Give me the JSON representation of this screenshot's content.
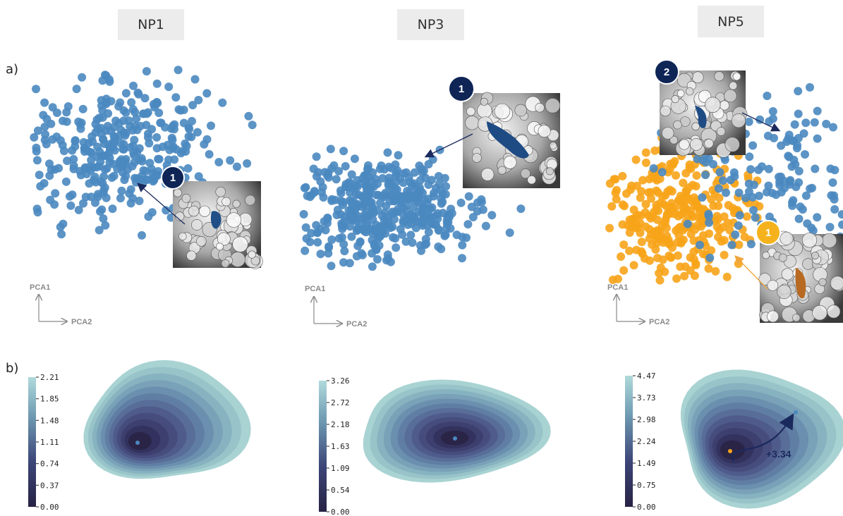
{
  "panel_a_label": "a)",
  "panel_b_label": "b)",
  "columns": [
    {
      "title": "NP1",
      "pca1": "PCA1",
      "pca2": "PCA2",
      "pockets": [
        {
          "number": "1",
          "color": "#0e2556",
          "text_color": "#ffffff"
        }
      ],
      "colorbar_ticks": [
        "2.21",
        "1.85",
        "1.48",
        "1.11",
        "0.74",
        "0.37",
        "0.00"
      ],
      "delta": ""
    },
    {
      "title": "NP3",
      "pca1": "PCA1",
      "pca2": "PCA2",
      "pockets": [
        {
          "number": "1",
          "color": "#0e2556",
          "text_color": "#ffffff"
        }
      ],
      "colorbar_ticks": [
        "3.26",
        "2.72",
        "2.18",
        "1.63",
        "1.09",
        "0.54",
        "0.00"
      ],
      "delta": ""
    },
    {
      "title": "NP5",
      "pca1": "PCA1",
      "pca2": "PCA2",
      "pockets": [
        {
          "number": "2",
          "color": "#0e2556",
          "text_color": "#ffffff"
        },
        {
          "number": "1",
          "color": "#f5b21c",
          "text_color": "#ffffff"
        }
      ],
      "colorbar_ticks": [
        "4.47",
        "3.73",
        "2.98",
        "2.24",
        "1.49",
        "0.75",
        "0.00"
      ],
      "delta": "+3.34"
    }
  ],
  "colors": {
    "point_blue": "#4a88c0",
    "point_orange": "#f7a41a",
    "density_low": "#a9d3d3",
    "density_high": "#2a2447",
    "arrow_navy": "#1b2a5e"
  },
  "chart_data": [
    {
      "type": "scatter",
      "title": "NP1",
      "xlabel": "PCA2",
      "ylabel": "PCA1",
      "series": [
        {
          "name": "",
          "n_points": 330,
          "center_pca2": 0.0,
          "center_pca1": 0.3,
          "color": "#4a88c0"
        }
      ]
    },
    {
      "type": "scatter",
      "title": "NP3",
      "xlabel": "PCA2",
      "ylabel": "PCA1",
      "series": [
        {
          "name": "",
          "n_points": 420,
          "center_pca2": 0.0,
          "center_pca1": 0.0,
          "color": "#4a88c0"
        }
      ]
    },
    {
      "type": "scatter",
      "title": "NP5",
      "xlabel": "PCA2",
      "ylabel": "PCA1",
      "series": [
        {
          "name": "",
          "n_points": 300,
          "center_pca2": -0.8,
          "center_pca1": -0.3,
          "color": "#f7a41a"
        },
        {
          "name": "",
          "n_points": 150,
          "center_pca2": 0.9,
          "center_pca1": 0.3,
          "color": "#4a88c0"
        }
      ]
    },
    {
      "type": "heatmap",
      "title": "NP1 density",
      "colorbar_ticks": [
        2.21,
        1.85,
        1.48,
        1.11,
        0.74,
        0.37,
        0.0
      ],
      "vmin": 0.0,
      "vmax": 2.21
    },
    {
      "type": "heatmap",
      "title": "NP3 density",
      "colorbar_ticks": [
        3.26,
        2.72,
        2.18,
        1.63,
        1.09,
        0.54,
        0.0
      ],
      "vmin": 0.0,
      "vmax": 3.26
    },
    {
      "type": "heatmap",
      "title": "NP5 density",
      "colorbar_ticks": [
        4.47,
        3.73,
        2.98,
        2.24,
        1.49,
        0.75,
        0.0
      ],
      "vmin": 0.0,
      "vmax": 4.47,
      "annotation": "+3.34"
    }
  ]
}
